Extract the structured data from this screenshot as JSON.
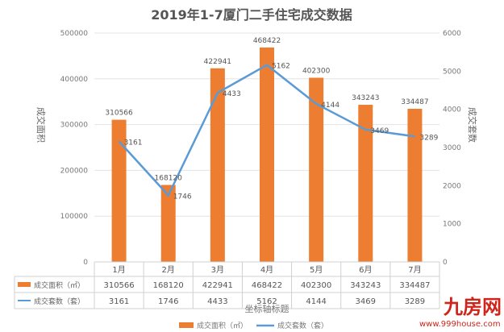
{
  "chart_data": {
    "type": "bar+line",
    "title": "2019年1-7厦门二手住宅成交数据",
    "xlabel": "坐标轴标题",
    "ylabel_left": "成交面积",
    "ylabel_right": "成交套数",
    "categories": [
      "1月",
      "2月",
      "3月",
      "4月",
      "5月",
      "6月",
      "7月"
    ],
    "ylim_left": [
      0,
      500000
    ],
    "yticks_left": [
      0,
      100000,
      200000,
      300000,
      400000,
      500000
    ],
    "ylim_right": [
      0,
      6000
    ],
    "yticks_right": [
      0,
      1000,
      2000,
      3000,
      4000,
      5000,
      6000
    ],
    "grid": true,
    "legend_placement": "bottom",
    "series": [
      {
        "name": "成交面积（㎡）",
        "table_label": "成交面积（㎡）",
        "type": "bar",
        "axis": "left",
        "color": "#ED7D31",
        "values": [
          310566,
          168120,
          422941,
          468422,
          402300,
          343243,
          334487
        ]
      },
      {
        "name": "成交套数（套）",
        "table_label": "成交套数（套）",
        "type": "line",
        "axis": "right",
        "color": "#5B9BD5",
        "values": [
          3161,
          1746,
          4433,
          5162,
          4144,
          3469,
          3289
        ]
      }
    ]
  },
  "watermark": {
    "logo": "九房网",
    "url": "www.999house.com",
    "color": "#D0241B"
  }
}
